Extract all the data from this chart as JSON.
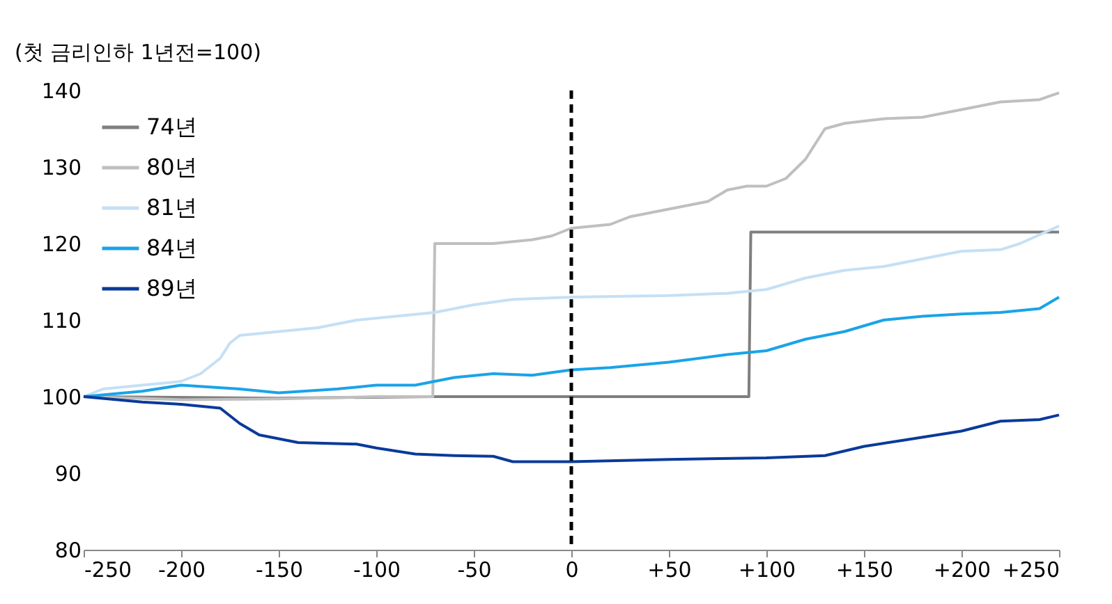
{
  "chart_data": {
    "type": "line",
    "ylabel": "(첫 금리인하 1년전=100)",
    "xlim": [
      -250,
      250
    ],
    "xticks": [
      -250,
      -200,
      -150,
      -100,
      -50,
      0,
      {
        "value": 50,
        "label": "+50"
      },
      {
        "value": 100,
        "label": "+100"
      },
      {
        "value": 150,
        "label": "+150"
      },
      {
        "value": 200,
        "label": "+200"
      },
      {
        "value": 250,
        "label": "+250"
      }
    ],
    "ylim": [
      80,
      140
    ],
    "yticks": [
      80,
      90,
      100,
      110,
      120,
      130,
      140
    ],
    "grid": false,
    "legend": "top left",
    "marker": "none",
    "line_style": "solid",
    "ref_lines": [
      {
        "axis": "x",
        "value": 0,
        "color": "#000000",
        "line_style": "dashed"
      }
    ],
    "series": [
      {
        "name": "74년",
        "color": "#7f7f7f",
        "x": [
          -250,
          -150,
          -70,
          0,
          91,
          92,
          150,
          250
        ],
        "values": [
          100,
          99.8,
          100,
          100,
          100,
          121.5,
          121.5,
          121.5
        ]
      },
      {
        "name": "80년",
        "color": "#bfbfbf",
        "x": [
          -250,
          -200,
          -150,
          -100,
          -71,
          -70,
          -40,
          -20,
          -10,
          0,
          20,
          30,
          50,
          70,
          80,
          90,
          100,
          110,
          120,
          125,
          130,
          140,
          160,
          180,
          200,
          220,
          240,
          250
        ],
        "values": [
          100,
          99.6,
          99.7,
          100,
          100,
          120,
          120,
          120.5,
          121,
          122,
          122.5,
          123.5,
          124.5,
          125.5,
          127,
          127.5,
          127.5,
          128.5,
          131,
          133,
          135,
          135.7,
          136.3,
          136.5,
          137.5,
          138.5,
          138.8,
          139.7
        ]
      },
      {
        "name": "81년",
        "color": "#c5e0f5",
        "x": [
          -250,
          -240,
          -220,
          -200,
          -190,
          -180,
          -175,
          -170,
          -150,
          -130,
          -110,
          -90,
          -70,
          -50,
          -30,
          0,
          50,
          80,
          100,
          120,
          140,
          160,
          180,
          200,
          220,
          230,
          250
        ],
        "values": [
          100,
          101,
          101.5,
          102,
          103,
          105,
          107,
          108,
          108.5,
          109,
          110,
          110.5,
          111,
          112,
          112.7,
          113,
          113.2,
          113.5,
          114,
          115.5,
          116.5,
          117,
          118,
          119,
          119.2,
          120,
          122.3
        ]
      },
      {
        "name": "84년",
        "color": "#1aa3e8",
        "x": [
          -250,
          -220,
          -200,
          -170,
          -150,
          -120,
          -100,
          -80,
          -60,
          -40,
          -20,
          0,
          20,
          50,
          80,
          100,
          120,
          140,
          160,
          180,
          200,
          220,
          240,
          250
        ],
        "values": [
          100,
          100.7,
          101.5,
          101,
          100.5,
          101,
          101.5,
          101.5,
          102.5,
          103,
          102.8,
          103.5,
          103.8,
          104.5,
          105.5,
          106,
          107.5,
          108.5,
          110,
          110.5,
          110.8,
          111,
          111.5,
          113
        ]
      },
      {
        "name": "89년",
        "color": "#0a3a9a",
        "x": [
          -250,
          -220,
          -200,
          -180,
          -170,
          -160,
          -140,
          -110,
          -100,
          -80,
          -60,
          -40,
          -30,
          0,
          50,
          100,
          130,
          150,
          170,
          200,
          220,
          240,
          250
        ],
        "values": [
          100,
          99.3,
          99,
          98.5,
          96.5,
          95,
          94,
          93.8,
          93.3,
          92.5,
          92.3,
          92.2,
          91.5,
          91.5,
          91.8,
          92,
          92.3,
          93.5,
          94.3,
          95.5,
          96.8,
          97,
          97.6
        ]
      }
    ]
  }
}
